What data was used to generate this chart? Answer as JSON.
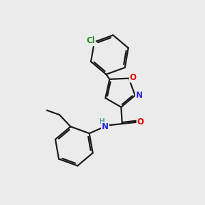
{
  "background_color": "#ebebeb",
  "line_color": "#1a1a1a",
  "bond_width": 1.6,
  "font_size": 8.5,
  "fig_size": [
    3.0,
    3.0
  ],
  "dpi": 100,
  "atom_colors": {
    "O": "#e00000",
    "N": "#2020dd",
    "Cl": "#228b22",
    "H": "#5aaaaa"
  }
}
